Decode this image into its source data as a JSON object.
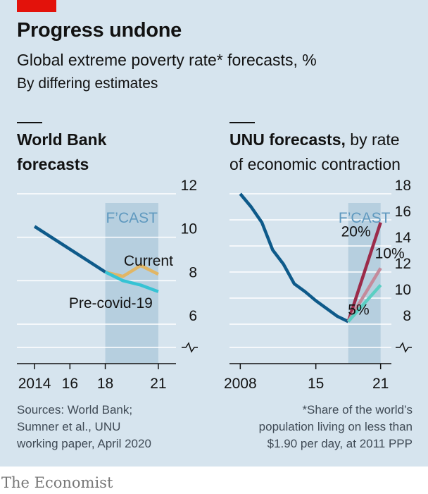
{
  "header": {
    "title": "Progress undone",
    "subtitle": "Global extreme poverty rate* forecasts, %",
    "subtitle2": "By differing estimates"
  },
  "left_chart": {
    "title_line1": "World Bank",
    "title_line2": "forecasts"
  },
  "right_chart": {
    "title_bold": "UNU forecasts,",
    "title_rest1": " by rate",
    "title_line2": "of economic contraction"
  },
  "sources": {
    "line1": "Sources: World Bank;",
    "line2": "Sumner et al., UNU",
    "line3": "working paper, April 2020"
  },
  "footnote": {
    "line1": "*Share of the world’s",
    "line2": "population living on less than",
    "line3": "$1.90 per day, at 2011 PPP"
  },
  "brand": "The Economist",
  "colors": {
    "background": "#d6e4ee",
    "forecast_band": "#b6cfdf",
    "gridline": "#ffffff",
    "history": "#0e5a8a",
    "current": "#e1b665",
    "precovid": "#36c3d4",
    "contraction_20": "#9b2b4a",
    "contraction_10": "#c48a9b",
    "contraction_5": "#5bcfc3",
    "forecast_label": "#5f99bf"
  },
  "chart_data": [
    {
      "type": "line",
      "title": "World Bank forecasts",
      "x_ticks": [
        2014,
        2016,
        2018,
        2021
      ],
      "x_tick_labels": [
        "2014",
        "16",
        "18",
        "21"
      ],
      "xlim": [
        2013,
        2022
      ],
      "ylim": [
        5,
        12
      ],
      "y_ticks": [
        6,
        8,
        10,
        12
      ],
      "y_tick_labels": [
        "6",
        "8",
        "10",
        "12"
      ],
      "y_axis_side": "right",
      "y_axis_break": true,
      "grid": true,
      "forecast_band": {
        "x": [
          2018,
          2021
        ],
        "label": "F’CAST"
      },
      "series": [
        {
          "name": "",
          "role": "history",
          "x": [
            2014,
            2018
          ],
          "values": [
            10.5,
            8.4
          ]
        },
        {
          "name": "Current",
          "role": "current",
          "x": [
            2018,
            2019,
            2020,
            2021
          ],
          "values": [
            8.4,
            8.2,
            8.7,
            8.3
          ]
        },
        {
          "name": "Pre-covid-19",
          "role": "precovid",
          "x": [
            2018,
            2019,
            2020,
            2021
          ],
          "values": [
            8.4,
            8.0,
            7.8,
            7.5
          ]
        }
      ]
    },
    {
      "type": "line",
      "title": "UNU forecasts, by rate of economic contraction",
      "x_ticks": [
        2008,
        2015,
        2021
      ],
      "x_tick_labels": [
        "2008",
        "15",
        "21"
      ],
      "xlim": [
        2007,
        2022
      ],
      "ylim": [
        7,
        18
      ],
      "y_ticks": [
        8,
        10,
        12,
        14,
        16,
        18
      ],
      "y_tick_labels": [
        "8",
        "10",
        "12",
        "14",
        "16",
        "18"
      ],
      "y_axis_side": "right",
      "y_axis_break": true,
      "grid": true,
      "forecast_band": {
        "x": [
          2018,
          2021
        ],
        "label": "F’CAST"
      },
      "series": [
        {
          "name": "",
          "role": "history",
          "x": [
            2008,
            2009,
            2010,
            2011,
            2012,
            2013,
            2014,
            2015,
            2016,
            2017,
            2018
          ],
          "values": [
            18.0,
            17.0,
            15.8,
            13.7,
            12.6,
            11.1,
            10.5,
            9.8,
            9.2,
            8.6,
            8.2
          ]
        },
        {
          "name": "20%",
          "role": "contraction_20",
          "x": [
            2018,
            2021
          ],
          "values": [
            8.2,
            15.8
          ]
        },
        {
          "name": "10%",
          "role": "contraction_10",
          "x": [
            2018,
            2021
          ],
          "values": [
            8.2,
            12.3
          ]
        },
        {
          "name": "5%",
          "role": "contraction_5",
          "x": [
            2018,
            2021
          ],
          "values": [
            8.2,
            11.0
          ]
        }
      ]
    }
  ]
}
